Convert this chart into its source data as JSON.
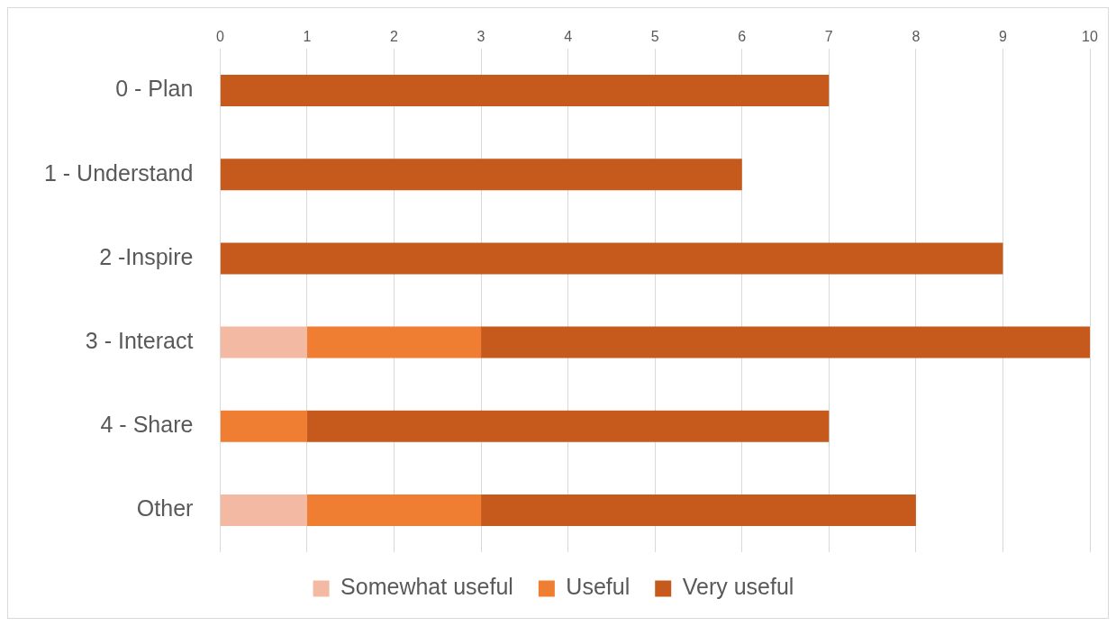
{
  "chart_data": {
    "type": "bar",
    "orientation": "horizontal",
    "stacked": true,
    "categories": [
      "0 - Plan",
      "1 - Understand",
      "2 -Inspire",
      "3 - Interact",
      "4 - Share",
      "Other"
    ],
    "series": [
      {
        "name": "Somewhat useful",
        "color": "#f4b9a2",
        "values": [
          0,
          0,
          0,
          1,
          0,
          1
        ]
      },
      {
        "name": "Useful",
        "color": "#ef7d32",
        "values": [
          0,
          0,
          0,
          2,
          1,
          2
        ]
      },
      {
        "name": "Very useful",
        "color": "#c55a1c",
        "values": [
          7,
          6,
          9,
          7,
          6,
          5
        ]
      }
    ],
    "xlim": [
      0,
      10
    ],
    "xticks": [
      0,
      1,
      2,
      3,
      4,
      5,
      6,
      7,
      8,
      9,
      10
    ],
    "grid": "x",
    "legend": "bottom"
  }
}
